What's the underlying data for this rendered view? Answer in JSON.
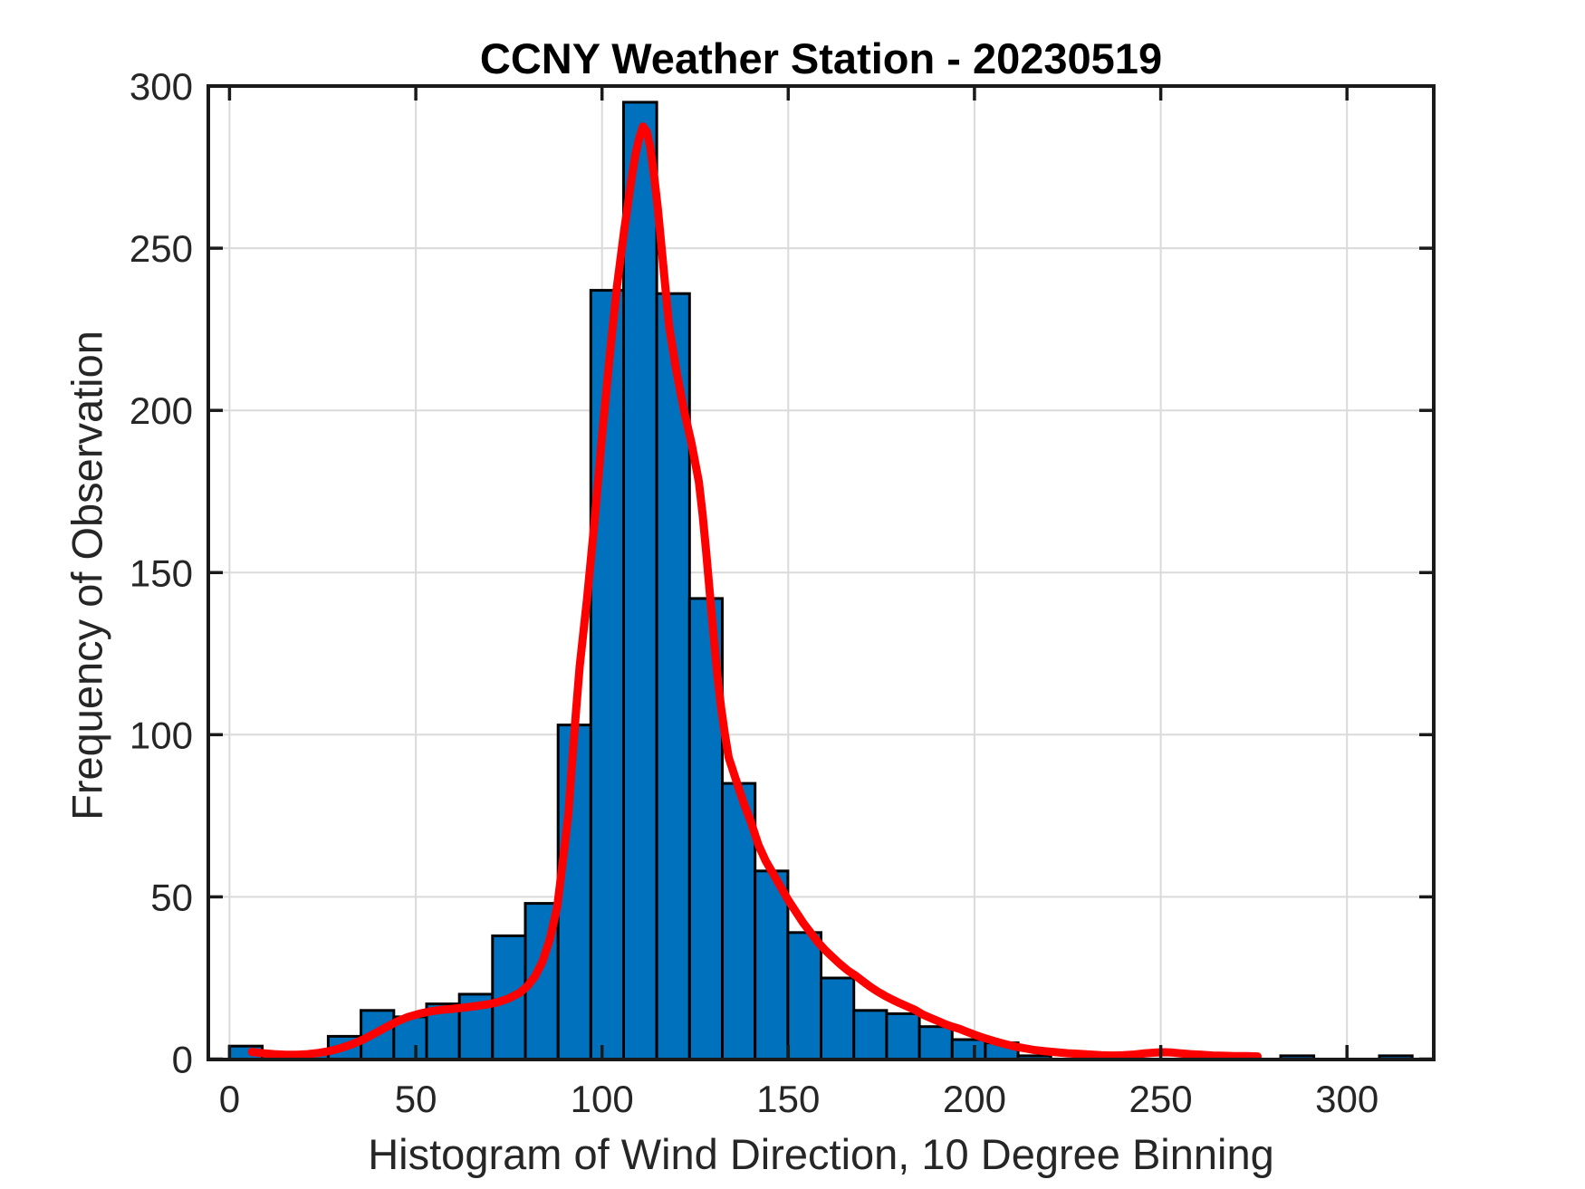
{
  "chart_data": {
    "type": "bar",
    "title": "CCNY Weather Station - 20230519",
    "xlabel": "Histogram of Wind Direction, 10 Degree Binning",
    "ylabel": "Frequency of Observation",
    "xlim": [
      -5.7,
      323.3
    ],
    "ylim": [
      0,
      300
    ],
    "x_ticks": [
      0,
      50,
      100,
      150,
      200,
      250,
      300
    ],
    "y_ticks": [
      0,
      50,
      100,
      150,
      200,
      250,
      300
    ],
    "grid": true,
    "legend": "none",
    "colors": {
      "bar_fill": "#0072BD",
      "bar_edge": "#000000",
      "curve": "#FF0000",
      "axis": "#1a1a1a",
      "grid_line": "#dadada",
      "tick_text": "#262626"
    },
    "bin_width_deg": 8.8,
    "bins": [
      {
        "x0": 0.0,
        "x1": 8.8,
        "count": 4
      },
      {
        "x0": 8.8,
        "x1": 17.6,
        "count": 1
      },
      {
        "x0": 17.6,
        "x1": 26.5,
        "count": 2
      },
      {
        "x0": 26.5,
        "x1": 35.3,
        "count": 7
      },
      {
        "x0": 35.3,
        "x1": 44.1,
        "count": 15
      },
      {
        "x0": 44.1,
        "x1": 52.9,
        "count": 13
      },
      {
        "x0": 52.9,
        "x1": 61.7,
        "count": 17
      },
      {
        "x0": 61.7,
        "x1": 70.6,
        "count": 20
      },
      {
        "x0": 70.6,
        "x1": 79.4,
        "count": 38
      },
      {
        "x0": 79.4,
        "x1": 88.2,
        "count": 48
      },
      {
        "x0": 88.2,
        "x1": 97.0,
        "count": 103
      },
      {
        "x0": 97.0,
        "x1": 105.8,
        "count": 237
      },
      {
        "x0": 105.8,
        "x1": 114.7,
        "count": 295
      },
      {
        "x0": 114.7,
        "x1": 123.5,
        "count": 236
      },
      {
        "x0": 123.5,
        "x1": 132.3,
        "count": 142
      },
      {
        "x0": 132.3,
        "x1": 141.1,
        "count": 85
      },
      {
        "x0": 141.1,
        "x1": 149.9,
        "count": 58
      },
      {
        "x0": 149.9,
        "x1": 158.8,
        "count": 39
      },
      {
        "x0": 158.8,
        "x1": 167.6,
        "count": 25
      },
      {
        "x0": 167.6,
        "x1": 176.4,
        "count": 15
      },
      {
        "x0": 176.4,
        "x1": 185.2,
        "count": 14
      },
      {
        "x0": 185.2,
        "x1": 194.0,
        "count": 10
      },
      {
        "x0": 194.0,
        "x1": 202.9,
        "count": 6
      },
      {
        "x0": 202.9,
        "x1": 211.7,
        "count": 5
      },
      {
        "x0": 211.7,
        "x1": 220.5,
        "count": 1
      },
      {
        "x0": 282.2,
        "x1": 291.1,
        "count": 1
      },
      {
        "x0": 308.7,
        "x1": 317.5,
        "count": 1
      }
    ],
    "curve": {
      "points": [
        [
          6,
          2.2
        ],
        [
          9,
          1.8
        ],
        [
          12,
          1.5
        ],
        [
          15,
          1.3
        ],
        [
          18,
          1.3
        ],
        [
          21,
          1.5
        ],
        [
          24,
          1.9
        ],
        [
          27,
          2.5
        ],
        [
          30,
          3.4
        ],
        [
          33,
          4.6
        ],
        [
          36,
          6.1
        ],
        [
          39,
          7.9
        ],
        [
          42,
          9.8
        ],
        [
          45,
          11.6
        ],
        [
          48,
          13
        ],
        [
          51,
          14
        ],
        [
          54,
          14.7
        ],
        [
          57,
          15.2
        ],
        [
          60,
          15.5
        ],
        [
          63,
          15.9
        ],
        [
          66,
          16.3
        ],
        [
          69,
          16.8
        ],
        [
          72,
          17.5
        ],
        [
          75,
          18.7
        ],
        [
          78,
          20.5
        ],
        [
          80,
          22.5
        ],
        [
          82,
          25.5
        ],
        [
          84,
          30
        ],
        [
          86,
          37
        ],
        [
          88,
          47
        ],
        [
          90,
          66
        ],
        [
          91,
          76
        ],
        [
          92,
          92
        ],
        [
          93,
          107
        ],
        [
          94,
          121
        ],
        [
          96,
          142
        ],
        [
          98,
          166
        ],
        [
          100,
          192
        ],
        [
          102,
          216
        ],
        [
          104,
          238
        ],
        [
          106,
          256
        ],
        [
          108,
          272
        ],
        [
          109,
          279
        ],
        [
          110,
          284
        ],
        [
          111,
          287.5
        ],
        [
          112,
          286
        ],
        [
          113,
          281
        ],
        [
          114,
          272
        ],
        [
          115,
          262
        ],
        [
          116,
          250
        ],
        [
          117,
          238
        ],
        [
          118,
          226
        ],
        [
          120,
          212
        ],
        [
          122,
          200
        ],
        [
          124,
          190
        ],
        [
          126,
          178
        ],
        [
          127,
          168
        ],
        [
          128,
          156
        ],
        [
          129,
          143
        ],
        [
          130,
          130
        ],
        [
          131,
          118
        ],
        [
          132,
          108
        ],
        [
          133,
          100
        ],
        [
          134,
          93
        ],
        [
          136,
          86
        ],
        [
          138,
          79
        ],
        [
          140,
          73
        ],
        [
          142,
          66
        ],
        [
          144,
          61
        ],
        [
          146,
          57
        ],
        [
          148,
          53
        ],
        [
          150,
          49
        ],
        [
          152,
          45.5
        ],
        [
          154,
          42
        ],
        [
          156,
          39
        ],
        [
          158,
          36
        ],
        [
          160,
          33.5
        ],
        [
          162,
          31.3
        ],
        [
          164,
          29.2
        ],
        [
          166,
          27.3
        ],
        [
          168,
          25.8
        ],
        [
          170,
          24
        ],
        [
          172,
          22.3
        ],
        [
          174,
          20.8
        ],
        [
          176,
          19.5
        ],
        [
          178,
          18.3
        ],
        [
          180,
          17.2
        ],
        [
          182,
          16.2
        ],
        [
          184,
          15.2
        ],
        [
          186,
          13.8
        ],
        [
          188,
          12.8
        ],
        [
          190,
          11.8
        ],
        [
          192,
          10.8
        ],
        [
          194,
          10.0
        ],
        [
          196,
          9.3
        ],
        [
          198,
          8.4
        ],
        [
          200,
          7.5
        ],
        [
          202,
          6.7
        ],
        [
          204,
          6
        ],
        [
          206,
          5.3
        ],
        [
          208,
          4.7
        ],
        [
          210,
          4.1
        ],
        [
          212,
          3.6
        ],
        [
          214,
          3.2
        ],
        [
          216,
          2.8
        ],
        [
          219,
          2.4
        ],
        [
          222,
          2.1
        ],
        [
          225,
          1.8
        ],
        [
          228,
          1.6
        ],
        [
          231,
          1.4
        ],
        [
          234,
          1.2
        ],
        [
          237,
          1.1
        ],
        [
          240,
          1.2
        ],
        [
          243,
          1.4
        ],
        [
          246,
          1.8
        ],
        [
          249,
          2
        ],
        [
          251,
          2.1
        ],
        [
          253,
          2
        ],
        [
          255,
          1.8
        ],
        [
          258,
          1.5
        ],
        [
          261,
          1.3
        ],
        [
          264,
          1.1
        ],
        [
          267,
          1
        ],
        [
          270,
          0.9
        ],
        [
          273,
          0.9
        ],
        [
          276,
          0.8
        ]
      ]
    }
  }
}
